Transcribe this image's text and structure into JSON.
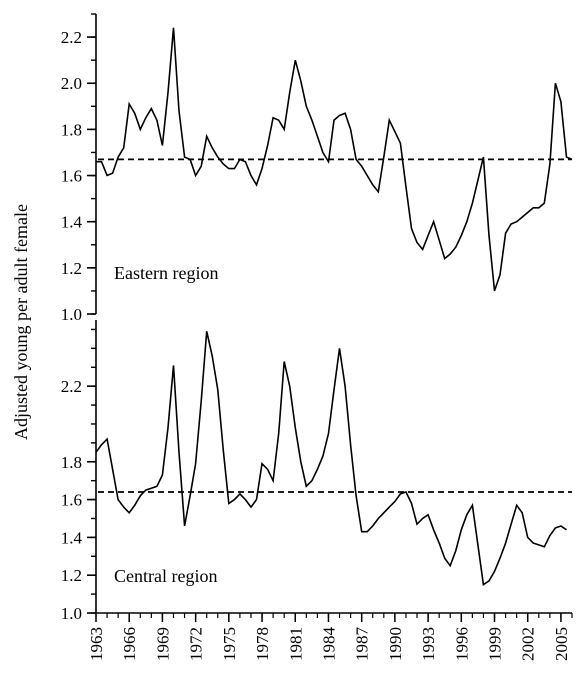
{
  "chart_data": [
    {
      "type": "line",
      "panel_label": "Eastern region",
      "ylabel": "Adjusted young per adult female",
      "ylim": [
        1.0,
        2.3
      ],
      "yticks": [
        1.0,
        1.2,
        1.4,
        1.6,
        1.8,
        2.0,
        2.2
      ],
      "ytick_labels": [
        "1.0",
        "1.2",
        "1.4",
        "1.6",
        "1.8",
        "2.0",
        "2.2"
      ],
      "reference_line": 1.67,
      "series": [
        {
          "x": [
            1963.0,
            1963.5,
            1964.0,
            1964.5,
            1965.0,
            1965.5,
            1966.0,
            1966.5,
            1967.0,
            1967.5,
            1968.0,
            1968.5,
            1969.0,
            1969.5,
            1970.0,
            1970.5,
            1971.0,
            1971.5,
            1972.0,
            1972.5,
            1973.0,
            1973.5,
            1974.0,
            1974.5,
            1975.0,
            1975.5,
            1976.0,
            1976.5,
            1977.0,
            1977.5,
            1978.0,
            1978.5,
            1979.0,
            1979.5,
            1980.0,
            1980.5,
            1981.0,
            1981.5,
            1982.0,
            1982.5,
            1983.0,
            1983.5,
            1984.0,
            1984.5,
            1985.0,
            1985.5,
            1986.0,
            1986.5,
            1987.0,
            1987.5,
            1988.0,
            1988.5,
            1989.0,
            1989.5,
            1990.0,
            1990.5,
            1991.0,
            1991.5,
            1992.0,
            1992.5,
            1993.0,
            1993.5,
            1994.0,
            1994.5,
            1995.0,
            1995.5,
            1996.0,
            1996.5,
            1997.0,
            1997.5,
            1998.0,
            1998.5,
            1999.0,
            1999.5,
            2000.0,
            2000.5,
            2001.0,
            2001.5,
            2002.0,
            2002.5,
            2003.0,
            2003.5,
            2004.0,
            2004.5,
            2005.0,
            2005.5,
            2006.0
          ],
          "y": [
            1.66,
            1.66,
            1.6,
            1.61,
            1.68,
            1.72,
            1.91,
            1.87,
            1.8,
            1.85,
            1.89,
            1.84,
            1.73,
            1.96,
            2.24,
            1.88,
            1.68,
            1.67,
            1.6,
            1.64,
            1.77,
            1.72,
            1.68,
            1.65,
            1.63,
            1.63,
            1.67,
            1.66,
            1.6,
            1.56,
            1.63,
            1.73,
            1.85,
            1.84,
            1.8,
            1.96,
            2.1,
            2.01,
            1.9,
            1.84,
            1.77,
            1.7,
            1.66,
            1.84,
            1.86,
            1.87,
            1.8,
            1.67,
            1.64,
            1.6,
            1.56,
            1.53,
            1.68,
            1.84,
            1.79,
            1.74,
            1.55,
            1.37,
            1.31,
            1.28,
            1.34,
            1.4,
            1.32,
            1.24,
            1.26,
            1.29,
            1.34,
            1.4,
            1.48,
            1.58,
            1.68,
            1.34,
            1.1,
            1.17,
            1.35,
            1.39,
            1.4,
            1.42,
            1.44,
            1.46,
            1.46,
            1.48,
            1.65,
            2.0,
            1.92,
            1.68,
            1.67
          ]
        }
      ]
    },
    {
      "type": "line",
      "panel_label": "Central region",
      "ylim": [
        1.0,
        2.55
      ],
      "yticks": [
        1.0,
        1.2,
        1.4,
        1.6,
        1.8,
        2.2
      ],
      "ytick_labels": [
        "1.0",
        "1.2",
        "1.4",
        "1.6",
        "1.8",
        "2.2"
      ],
      "reference_line": 1.64,
      "xlim": [
        1963,
        2006
      ],
      "xticks": [
        1963,
        1966,
        1969,
        1972,
        1975,
        1978,
        1981,
        1984,
        1987,
        1990,
        1993,
        1996,
        1999,
        2002,
        2005
      ],
      "xtick_labels": [
        "1963",
        "1966",
        "1969",
        "1972",
        "1975",
        "1978",
        "1981",
        "1984",
        "1987",
        "1990",
        "1993",
        "1996",
        "1999",
        "2002",
        "2005"
      ],
      "series": [
        {
          "x": [
            1963.0,
            1963.5,
            1964.0,
            1964.5,
            1965.0,
            1965.5,
            1966.0,
            1966.5,
            1967.0,
            1967.5,
            1968.0,
            1968.5,
            1969.0,
            1969.5,
            1970.0,
            1970.5,
            1971.0,
            1971.5,
            1972.0,
            1972.5,
            1973.0,
            1973.5,
            1974.0,
            1974.5,
            1975.0,
            1975.5,
            1976.0,
            1976.5,
            1977.0,
            1977.5,
            1978.0,
            1978.5,
            1979.0,
            1979.5,
            1980.0,
            1980.5,
            1981.0,
            1981.5,
            1982.0,
            1982.5,
            1983.0,
            1983.5,
            1984.0,
            1984.5,
            1985.0,
            1985.5,
            1986.0,
            1986.5,
            1987.0,
            1987.5,
            1988.0,
            1988.5,
            1989.0,
            1989.5,
            1990.0,
            1990.5,
            1991.0,
            1991.5,
            1992.0,
            1992.5,
            1993.0,
            1993.5,
            1994.0,
            1994.5,
            1995.0,
            1995.5,
            1996.0,
            1996.5,
            1997.0,
            1997.5,
            1998.0,
            1998.5,
            1999.0,
            1999.5,
            2000.0,
            2000.5,
            2001.0,
            2001.5,
            2002.0,
            2002.5,
            2003.0,
            2003.5,
            2004.0,
            2004.5,
            2005.0,
            2005.5
          ],
          "y": [
            1.85,
            1.89,
            1.92,
            1.76,
            1.6,
            1.56,
            1.53,
            1.57,
            1.62,
            1.65,
            1.66,
            1.67,
            1.73,
            1.98,
            2.31,
            1.85,
            1.46,
            1.62,
            1.79,
            2.12,
            2.49,
            2.36,
            2.18,
            1.86,
            1.58,
            1.6,
            1.63,
            1.6,
            1.56,
            1.6,
            1.79,
            1.76,
            1.7,
            1.95,
            2.33,
            2.2,
            1.98,
            1.8,
            1.67,
            1.7,
            1.76,
            1.83,
            1.95,
            2.18,
            2.4,
            2.2,
            1.89,
            1.62,
            1.43,
            1.43,
            1.46,
            1.5,
            1.53,
            1.56,
            1.59,
            1.63,
            1.64,
            1.58,
            1.47,
            1.5,
            1.52,
            1.44,
            1.37,
            1.29,
            1.25,
            1.33,
            1.44,
            1.52,
            1.57,
            1.36,
            1.15,
            1.17,
            1.22,
            1.29,
            1.37,
            1.47,
            1.57,
            1.53,
            1.4,
            1.37,
            1.36,
            1.35,
            1.41,
            1.45,
            1.46,
            1.44
          ]
        }
      ]
    }
  ]
}
